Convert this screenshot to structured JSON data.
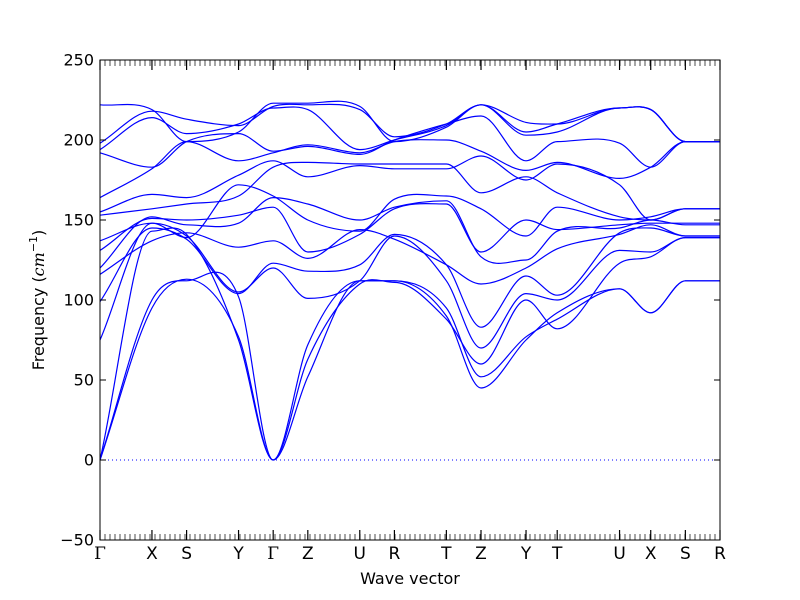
{
  "chart_data": {
    "type": "line",
    "title": "",
    "xlabel": "Wave vector",
    "ylabel": "Frequency ($cm^{-1}$)",
    "ylabel_parts": {
      "prefix": "Frequency (",
      "unit": "cm",
      "exponent": "−1",
      "suffix": ")"
    },
    "ylim": [
      -50,
      250
    ],
    "yticks": [
      -50,
      0,
      50,
      100,
      150,
      200,
      250
    ],
    "ytick_labels": [
      "−50",
      "0",
      "50",
      "100",
      "150",
      "200",
      "250"
    ],
    "x": [
      0,
      0.75,
      1.25,
      2.0,
      2.5,
      3.0,
      3.75,
      4.25,
      5.0,
      5.5,
      6.15,
      6.6,
      7.5,
      7.95,
      8.45,
      8.95
    ],
    "x_labels": [
      "Γ",
      "X",
      "S",
      "Y",
      "Γ",
      "Z",
      "U",
      "R",
      "T",
      "Z",
      "Y",
      "T",
      "U",
      "X",
      "S",
      "R"
    ],
    "zero_line": {
      "y": 0,
      "style": "dotted"
    },
    "line_color": "#0000ff",
    "series": [
      {
        "values": [
          0,
          143,
          141,
          75,
          0,
          72,
          112,
          112,
          90,
          45,
          75,
          92,
          107,
          92,
          112,
          112
        ]
      },
      {
        "values": [
          0,
          95,
          113,
          77,
          0,
          52,
          112,
          112,
          95,
          52,
          77,
          88,
          107,
          92,
          112,
          112
        ]
      },
      {
        "values": [
          0,
          100,
          112,
          102,
          0,
          63,
          110,
          111,
          88,
          60,
          100,
          82,
          123,
          127,
          139,
          139
        ]
      },
      {
        "values": [
          75,
          148,
          140,
          105,
          120,
          101,
          112,
          140,
          112,
          70,
          104,
          100,
          131,
          130,
          139,
          139
        ]
      },
      {
        "values": [
          99,
          145,
          138,
          104,
          123,
          118,
          122,
          141,
          122,
          83,
          115,
          103,
          142,
          145,
          140,
          140
        ]
      },
      {
        "values": [
          116,
          137,
          142,
          133,
          137,
          126,
          144,
          138,
          122,
          110,
          120,
          132,
          141,
          147,
          140,
          140
        ]
      },
      {
        "values": [
          120,
          152,
          147,
          148,
          164,
          160,
          150,
          158,
          162,
          127,
          125,
          143,
          145,
          150,
          147,
          147
        ]
      },
      {
        "values": [
          131,
          151,
          150,
          153,
          158,
          130,
          141,
          157,
          160,
          130,
          150,
          144,
          147,
          148,
          148,
          148
        ]
      },
      {
        "values": [
          137,
          148,
          139,
          172,
          165,
          150,
          143,
          163,
          165,
          157,
          140,
          158,
          150,
          152,
          157,
          157
        ]
      },
      {
        "values": [
          153,
          157,
          160,
          165,
          183,
          186,
          185,
          185,
          185,
          167,
          177,
          167,
          152,
          150,
          157,
          157
        ]
      },
      {
        "values": [
          155,
          166,
          164,
          178,
          187,
          177,
          184,
          182,
          182,
          190,
          175,
          185,
          172,
          150,
          157,
          157
        ]
      },
      {
        "values": [
          164,
          182,
          199,
          187,
          192,
          197,
          192,
          199,
          200,
          193,
          181,
          186,
          176,
          183,
          199,
          199
        ]
      },
      {
        "values": [
          192,
          183,
          199,
          204,
          193,
          196,
          191,
          200,
          210,
          215,
          187,
          199,
          198,
          183,
          199,
          199
        ]
      },
      {
        "values": [
          194,
          214,
          204,
          210,
          220,
          219,
          194,
          200,
          209,
          222,
          203,
          205,
          220,
          219,
          199,
          199
        ]
      },
      {
        "values": [
          198,
          218,
          213,
          209,
          221,
          222,
          219,
          202,
          210,
          222,
          211,
          210,
          220,
          219,
          199,
          199
        ]
      },
      {
        "values": [
          222,
          219,
          199,
          205,
          223,
          223,
          221,
          199,
          208,
          222,
          205,
          210,
          220,
          219,
          199,
          199
        ]
      }
    ]
  }
}
